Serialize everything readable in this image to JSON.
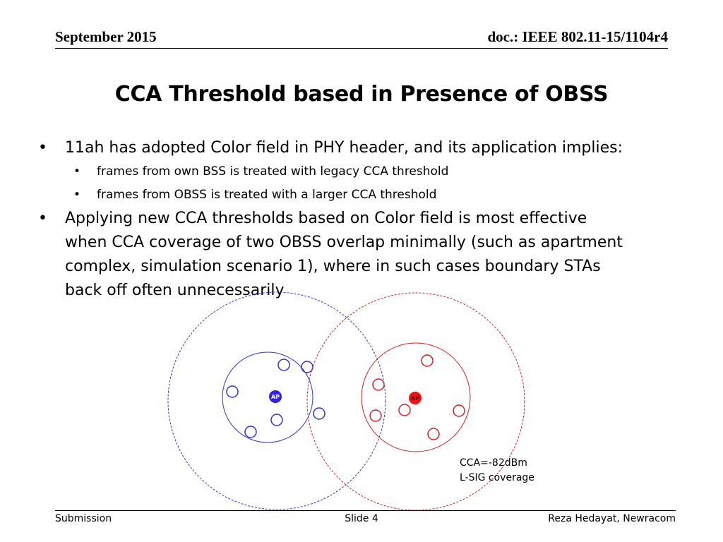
{
  "header": {
    "date": "September 2015",
    "doc_id": "doc.: IEEE 802.11-15/1104r4"
  },
  "title": "CCA Threshold based in Presence of OBSS",
  "bullets": [
    {
      "text": "11ah has adopted Color field in PHY header, and its application implies:",
      "sub": [
        "frames from own BSS is treated with legacy CCA threshold",
        "frames from OBSS is treated with a larger CCA threshold"
      ]
    },
    {
      "lines": [
        "Applying new CCA thresholds based on Color field is most effective",
        "when CCA coverage of two OBSS overlap minimally (such as apartment",
        "complex, simulation scenario 1), where in such cases boundary STAs",
        "back off often unnecessarily"
      ]
    }
  ],
  "diagram": {
    "ap_label": "AP",
    "cca_label_line1": "CCA=-82dBm",
    "cca_label_line2": "L-SIG coverage",
    "colors": {
      "bss1": "#3333cc",
      "bss2": "#cc2222"
    }
  },
  "footer": {
    "left": "Submission",
    "center": "Slide 4",
    "right": "Reza Hedayat, Newracom"
  }
}
